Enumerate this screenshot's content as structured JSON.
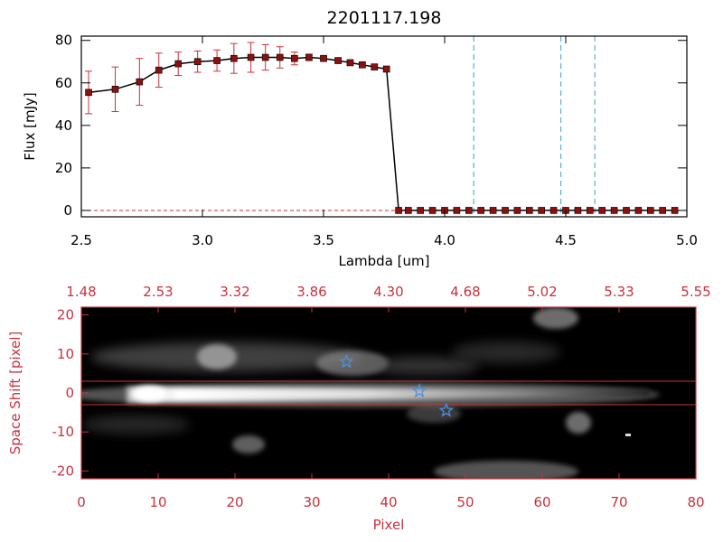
{
  "chart_data": [
    {
      "type": "line",
      "title": "2201117.198",
      "xlabel": "Lambda [um]",
      "ylabel": "Flux [mJy]",
      "xlim": [
        2.5,
        5.0
      ],
      "ylim": [
        -3,
        82
      ],
      "x_ticks": [
        "2.5",
        "3.0",
        "3.5",
        "4.0",
        "4.5",
        "5.0"
      ],
      "y_ticks": [
        "0",
        "20",
        "40",
        "60",
        "80"
      ],
      "series": [
        {
          "x": [
            2.53,
            2.64,
            2.74,
            2.82,
            2.9,
            2.98,
            3.06,
            3.13,
            3.2,
            3.26,
            3.32,
            3.38,
            3.44,
            3.5,
            3.56,
            3.61,
            3.66,
            3.71,
            3.76,
            3.81,
            3.85,
            3.9,
            3.95,
            4.0,
            4.05,
            4.1,
            4.15,
            4.2,
            4.25,
            4.3,
            4.35,
            4.4,
            4.45,
            4.5,
            4.55,
            4.6,
            4.65,
            4.7,
            4.75,
            4.8,
            4.85,
            4.9,
            4.95
          ],
          "y": [
            55.5,
            57,
            60.5,
            66,
            69,
            70,
            70.5,
            71.5,
            72,
            72,
            72,
            71.5,
            72,
            71.5,
            70.5,
            69.5,
            68.5,
            67.5,
            66.5,
            0,
            0,
            0,
            0,
            0,
            0,
            0,
            0,
            0,
            0,
            0,
            0,
            0,
            0,
            0,
            0,
            0,
            0,
            0,
            0,
            0,
            0,
            0,
            0
          ],
          "yerr": [
            10,
            10.5,
            11,
            8,
            5.5,
            5,
            5,
            7,
            7,
            6,
            5,
            3,
            1.5,
            1,
            1,
            1,
            1,
            1,
            1,
            0,
            0,
            0,
            0,
            0,
            0,
            0,
            0,
            0,
            0,
            0,
            0,
            0,
            0,
            0,
            0,
            0,
            0,
            0,
            0,
            0,
            0,
            0,
            0
          ]
        }
      ],
      "vertical_lines": [
        4.12,
        4.48,
        4.62
      ],
      "horizontal_dashed_line": 0,
      "colors": {
        "line": "#000000",
        "marker": "#8b1010",
        "errorbar": "#c8323c",
        "vlines": "#3aa0d0",
        "axes": "#000000"
      }
    },
    {
      "type": "heatmap",
      "xlabel": "Pixel",
      "ylabel": "Space Shift [pixel]",
      "xlim": [
        0,
        80
      ],
      "ylim": [
        -22,
        22
      ],
      "x_ticks": [
        "0",
        "10",
        "20",
        "30",
        "40",
        "50",
        "60",
        "70",
        "80"
      ],
      "y_ticks": [
        "-20",
        "-10",
        "0",
        "10",
        "20"
      ],
      "top_ticks": [
        "1.48",
        "2.53",
        "3.32",
        "3.86",
        "4.30",
        "4.68",
        "5.02",
        "5.33",
        "5.55"
      ],
      "extraction_band": [
        -3,
        3
      ],
      "markers": [
        {
          "x": 34.5,
          "y": 8
        },
        {
          "x": 44,
          "y": 0.5
        },
        {
          "x": 47.5,
          "y": -4.5
        }
      ],
      "colors": {
        "axes": "#c8323c",
        "band": "#d03030",
        "markers": "#4a90e2",
        "background": "#000000"
      }
    }
  ]
}
